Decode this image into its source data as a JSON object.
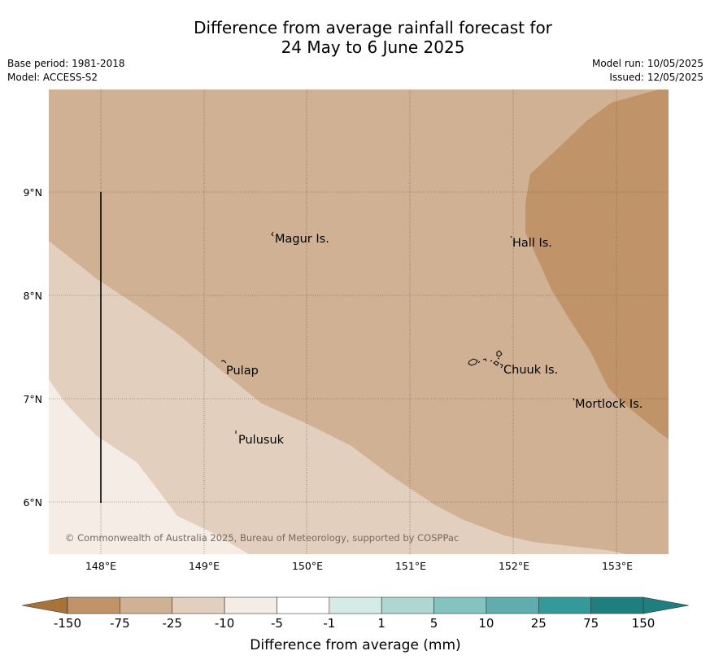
{
  "title_line1": "Difference from average rainfall forecast for",
  "title_line2": "24 May to 6 June 2025",
  "info_left": [
    "Base period: 1981-2018",
    "Model: ACCESS-S2"
  ],
  "info_right": [
    "Model run: 10/05/2025",
    "Issued: 12/05/2025"
  ],
  "colors": {
    "ocean_base": "#d0b194",
    "band_minus25": "#c09369",
    "band_minus10": "#d0b194",
    "band_minus5": "#e2cfbe",
    "band_minus1": "#f5ece6"
  },
  "map": {
    "lon_ticks": [
      "148°E",
      "149°E",
      "150°E",
      "151°E",
      "152°E",
      "153°E"
    ],
    "lat_ticks": [
      "9°N",
      "8°N",
      "7°N",
      "6°N"
    ],
    "places": [
      {
        "name": "Magur Is."
      },
      {
        "name": "Hall Is."
      },
      {
        "name": "Pulap"
      },
      {
        "name": "Chuuk Is."
      },
      {
        "name": "Mortlock Is."
      },
      {
        "name": "Pulusuk"
      }
    ],
    "copyright": "© Commonwealth of Australia 2025, Bureau of Meteorology, supported by COSPPac"
  },
  "legend": {
    "title": "Difference from average (mm)",
    "labels": [
      "-150",
      "-75",
      "-25",
      "-10",
      "-5",
      "-1",
      "1",
      "5",
      "10",
      "25",
      "75",
      "150"
    ],
    "colors": [
      "#a97238",
      "#c09369",
      "#d0b194",
      "#e2cfbe",
      "#f5ece6",
      "#ffffff",
      "#d5ebe8",
      "#aed6d3",
      "#85c3c1",
      "#5fadad",
      "#33999b",
      "#1f7f80"
    ]
  }
}
